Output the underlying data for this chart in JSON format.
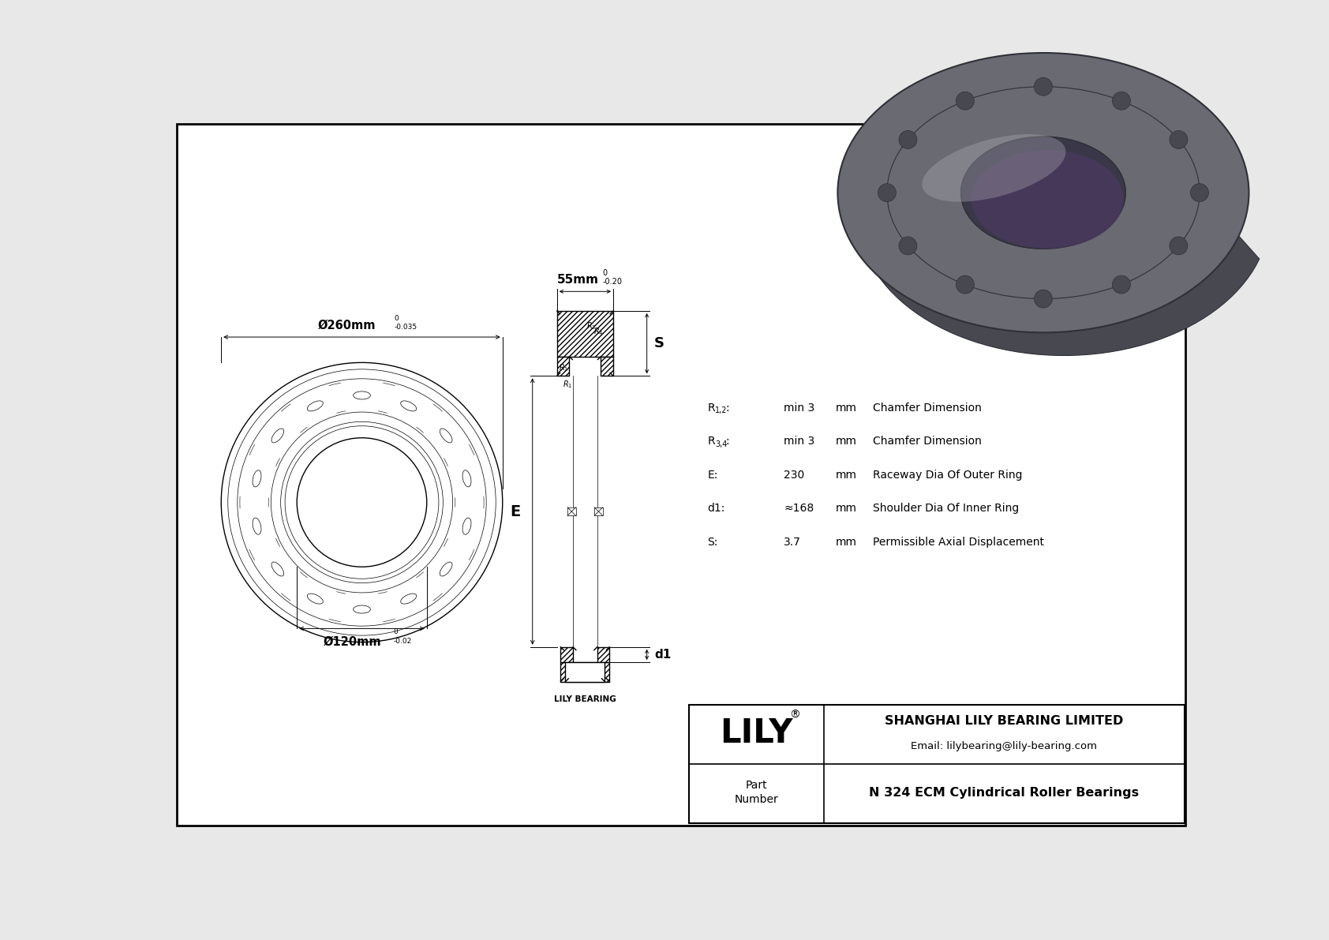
{
  "bg_color": "#e8e8e8",
  "drawing_bg": "#ffffff",
  "line_color": "#000000",
  "title_company": "SHANGHAI LILY BEARING LIMITED",
  "title_email": "Email: lilybearing@lily-bearing.com",
  "part_label": "Part\nNumber",
  "part_number": "N 324 ECM Cylindrical Roller Bearings",
  "brand": "LILY",
  "outer_dia_label": "Ø260mm",
  "inner_dia_label": "Ø120mm",
  "width_label": "55mm",
  "specs": [
    {
      "param": "R1,2:",
      "value": "min 3",
      "unit": "mm",
      "desc": "Chamfer Dimension"
    },
    {
      "param": "R3,4:",
      "value": "min 3",
      "unit": "mm",
      "desc": "Chamfer Dimension"
    },
    {
      "param": "E:",
      "value": "230",
      "unit": "mm",
      "desc": "Raceway Dia Of Outer Ring"
    },
    {
      "param": "d1:",
      "value": "≈168",
      "unit": "mm",
      "desc": "Shoulder Dia Of Inner Ring"
    },
    {
      "param": "S:",
      "value": "3.7",
      "unit": "mm",
      "desc": "Permissible Axial Displacement"
    }
  ]
}
